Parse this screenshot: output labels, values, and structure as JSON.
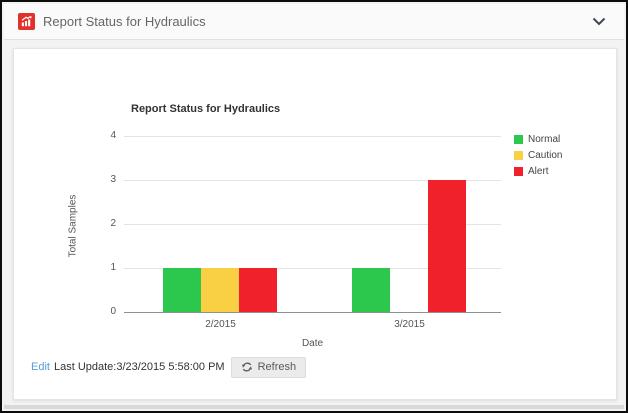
{
  "header": {
    "title": "Report Status for Hydraulics"
  },
  "chart_data": {
    "type": "bar",
    "title": "Report Status for Hydraulics",
    "xlabel": "Date",
    "ylabel": "Total Samples",
    "categories": [
      "2/2015",
      "3/2015"
    ],
    "series": [
      {
        "name": "Normal",
        "color": "#2cc84d",
        "values": [
          1,
          1
        ]
      },
      {
        "name": "Caution",
        "color": "#f9cf44",
        "values": [
          1,
          0
        ]
      },
      {
        "name": "Alert",
        "color": "#f1212b",
        "values": [
          1,
          3
        ]
      }
    ],
    "ylim": [
      0,
      4
    ],
    "yticks": [
      0,
      1,
      2,
      3,
      4
    ],
    "grid": true,
    "legend_position": "right"
  },
  "footer": {
    "edit_label": "Edit",
    "last_update_label": "Last Update:3/23/2015 5:58:00 PM",
    "refresh_label": "Refresh"
  }
}
